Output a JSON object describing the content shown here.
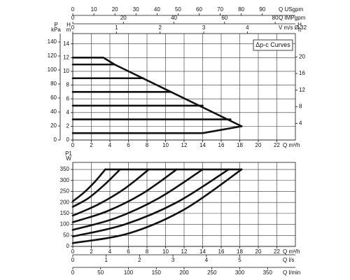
{
  "chart_data": [
    {
      "type": "line",
      "color": "#111111",
      "grid": true,
      "annotation": "Δp-c Curves",
      "xlabel": "Q m³/h",
      "xlim": [
        0,
        24
      ],
      "xticks": [
        0,
        2,
        4,
        6,
        8,
        10,
        12,
        14,
        16,
        18,
        20,
        22
      ],
      "x2label": "Q USgpm",
      "x2lim": [
        0,
        105.7
      ],
      "x2ticks": [
        0,
        10,
        20,
        30,
        40,
        50,
        60,
        70,
        80,
        90
      ],
      "x3label": "Q IMPgpm",
      "x3lim": [
        0,
        88
      ],
      "x3ticks": [
        0,
        20,
        40,
        60,
        80
      ],
      "x4label": "V m/s Ø 32",
      "x4lim": [
        0,
        5.1
      ],
      "x4ticks": [
        0,
        1,
        2,
        3,
        4
      ],
      "ylabel": [
        "H",
        "m"
      ],
      "ylim": [
        0,
        15.5
      ],
      "yticks": [
        0,
        2,
        4,
        6,
        8,
        10,
        12,
        14
      ],
      "y2label": [
        "H",
        "ft"
      ],
      "y2lim": [
        0,
        25.6
      ],
      "y2ticks": [
        4,
        8,
        12,
        16,
        20
      ],
      "y3label": [
        "P",
        "kPa"
      ],
      "y3lim": [
        0,
        152
      ],
      "y3ticks": [
        0,
        20,
        40,
        60,
        80,
        100,
        120,
        140
      ],
      "series": [
        {
          "x": [
            0,
            3.3,
            4.5,
            18.2
          ],
          "values": [
            12,
            12,
            11,
            2
          ]
        },
        {
          "x": [
            0,
            4.5
          ],
          "values": [
            11,
            11
          ]
        },
        {
          "x": [
            0,
            7.6
          ],
          "values": [
            9,
            9
          ]
        },
        {
          "x": [
            0,
            10.6
          ],
          "values": [
            7,
            7
          ]
        },
        {
          "x": [
            0,
            14
          ],
          "values": [
            5,
            5
          ]
        },
        {
          "x": [
            0,
            17
          ],
          "values": [
            3,
            3
          ]
        },
        {
          "x": [
            0,
            14,
            18.2
          ],
          "values": [
            1,
            1,
            2
          ]
        }
      ]
    },
    {
      "type": "line",
      "color": "#111111",
      "grid": true,
      "xlabel": "Q m³/h",
      "xlim": [
        0,
        24
      ],
      "xticks": [
        0,
        2,
        4,
        6,
        8,
        10,
        12,
        14,
        16,
        18,
        20,
        22
      ],
      "x2label": "Q l/s",
      "x2lim": [
        0,
        6.667
      ],
      "x2ticks": [
        0,
        1,
        2,
        3,
        4,
        5
      ],
      "x3label": "Q l/min",
      "x3lim": [
        0,
        400
      ],
      "x3ticks": [
        0,
        50,
        100,
        150,
        200,
        250,
        300,
        350
      ],
      "ylabel": [
        "P1",
        "W"
      ],
      "ylim": [
        0,
        382
      ],
      "yticks": [
        0,
        50,
        100,
        150,
        200,
        250,
        300,
        350
      ],
      "series": [
        {
          "x": [
            3.5,
            18.2
          ],
          "values": [
            350,
            350
          ]
        },
        {
          "x": [
            0,
            1.2,
            2.4,
            3.5
          ],
          "values": [
            205,
            245,
            295,
            350
          ]
        },
        {
          "x": [
            0,
            1.7,
            3.4,
            5.1
          ],
          "values": [
            180,
            220,
            280,
            350
          ]
        },
        {
          "x": [
            0,
            2.7,
            5.5,
            8.2
          ],
          "values": [
            140,
            190,
            260,
            350
          ]
        },
        {
          "x": [
            0,
            3.7,
            7.5,
            11.2
          ],
          "values": [
            110,
            160,
            240,
            350
          ]
        },
        {
          "x": [
            0,
            4.7,
            9.3,
            14
          ],
          "values": [
            75,
            130,
            220,
            350
          ]
        },
        {
          "x": [
            0,
            5.6,
            11.2,
            16.8
          ],
          "values": [
            45,
            100,
            200,
            350
          ]
        },
        {
          "x": [
            0,
            6.1,
            12.1,
            18.2
          ],
          "values": [
            15,
            60,
            170,
            350
          ]
        }
      ]
    }
  ]
}
